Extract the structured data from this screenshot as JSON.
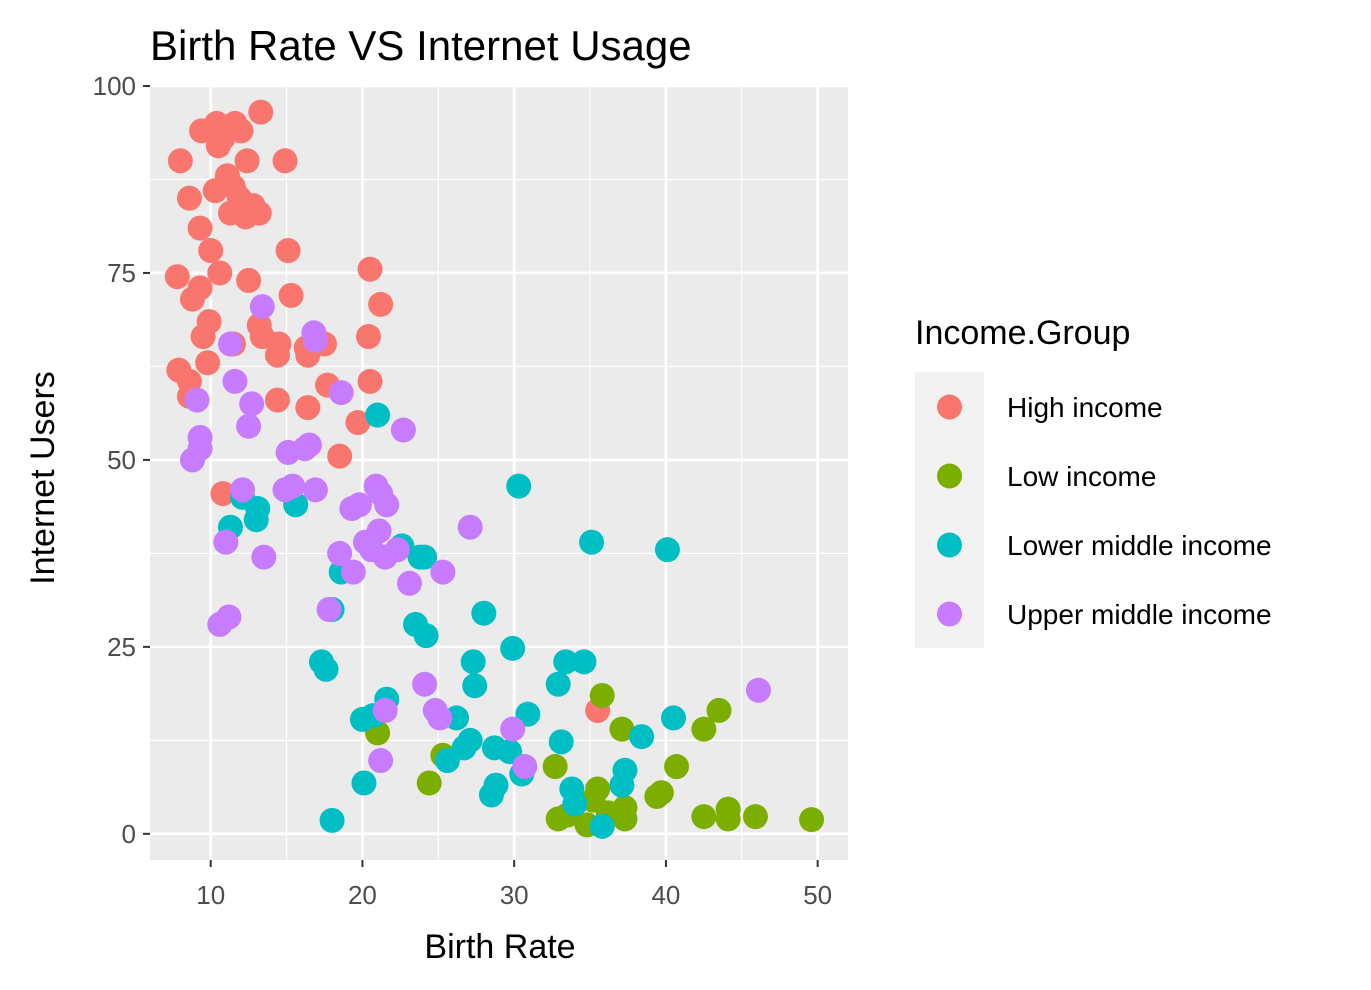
{
  "chart_data": {
    "type": "scatter",
    "title": "Birth Rate VS Internet Usage",
    "xlabel": "Birth Rate",
    "ylabel": "Internet Users",
    "xlim": [
      6,
      52
    ],
    "ylim": [
      -3.5,
      100
    ],
    "x_ticks": [
      10,
      20,
      30,
      40,
      50
    ],
    "y_ticks": [
      0,
      25,
      50,
      75,
      100
    ],
    "grid": true,
    "legend_title": "Income.Group",
    "legend_position": "right",
    "series": [
      {
        "name": "High income",
        "color": "#F8766D",
        "points": [
          [
            13.3,
            96.5
          ],
          [
            10.4,
            95
          ],
          [
            11.6,
            95
          ],
          [
            12,
            94
          ],
          [
            9.4,
            94
          ],
          [
            10.8,
            93
          ],
          [
            8,
            90
          ],
          [
            12.4,
            90
          ],
          [
            14.9,
            90
          ],
          [
            10.5,
            92
          ],
          [
            11.1,
            88
          ],
          [
            10.3,
            86
          ],
          [
            11.5,
            86.5
          ],
          [
            11.9,
            85
          ],
          [
            12.8,
            84
          ],
          [
            8.6,
            85
          ],
          [
            13.2,
            83
          ],
          [
            11.3,
            83
          ],
          [
            12.3,
            82.5
          ],
          [
            9.3,
            81
          ],
          [
            10,
            78
          ],
          [
            15.1,
            78
          ],
          [
            10.6,
            75
          ],
          [
            7.8,
            74.5
          ],
          [
            12.5,
            74
          ],
          [
            9.3,
            73
          ],
          [
            8.8,
            71.5
          ],
          [
            15.3,
            72
          ],
          [
            20.5,
            75.5
          ],
          [
            21.2,
            70.8
          ],
          [
            9.9,
            68.5
          ],
          [
            13.2,
            68
          ],
          [
            9.5,
            66.5
          ],
          [
            11.5,
            65.5
          ],
          [
            13.4,
            66.5
          ],
          [
            14.5,
            65.5
          ],
          [
            14.4,
            64
          ],
          [
            16.4,
            64
          ],
          [
            16.3,
            65
          ],
          [
            17.5,
            65.5
          ],
          [
            20.4,
            66.5
          ],
          [
            7.9,
            62
          ],
          [
            9.8,
            63
          ],
          [
            8.6,
            60.5
          ],
          [
            8.6,
            58.5
          ],
          [
            14.4,
            58
          ],
          [
            16.4,
            57
          ],
          [
            17.7,
            60
          ],
          [
            20.5,
            60.5
          ],
          [
            19.7,
            55
          ],
          [
            18.5,
            50.5
          ],
          [
            10.8,
            45.5
          ],
          [
            35.5,
            16.5
          ]
        ]
      },
      {
        "name": "Low income",
        "color": "#7CAE00",
        "points": [
          [
            35.8,
            18.5
          ],
          [
            43.5,
            16.5
          ],
          [
            42.5,
            14
          ],
          [
            37.1,
            14
          ],
          [
            40.7,
            9
          ],
          [
            39.7,
            5.5
          ],
          [
            39.4,
            5
          ],
          [
            42.5,
            2.3
          ],
          [
            44.1,
            3.3
          ],
          [
            44.1,
            2
          ],
          [
            45.9,
            2.3
          ],
          [
            49.6,
            1.9
          ],
          [
            37.3,
            3.5
          ],
          [
            37.3,
            2
          ],
          [
            36.2,
            2.8
          ],
          [
            35.2,
            4.5
          ],
          [
            34.8,
            1.2
          ],
          [
            33.5,
            2.5
          ],
          [
            32.9,
            2
          ],
          [
            32.7,
            9
          ],
          [
            35.5,
            6
          ],
          [
            25.3,
            10.5
          ],
          [
            24.4,
            6.8
          ],
          [
            21,
            13.5
          ]
        ]
      },
      {
        "name": "Lower middle income",
        "color": "#00BFC4",
        "points": [
          [
            21,
            56
          ],
          [
            30.3,
            46.5
          ],
          [
            35.1,
            39
          ],
          [
            40.1,
            38
          ],
          [
            11.3,
            41
          ],
          [
            12.1,
            45
          ],
          [
            13.1,
            43.5
          ],
          [
            13,
            42
          ],
          [
            15.6,
            44
          ],
          [
            22.6,
            38.5
          ],
          [
            23.8,
            37
          ],
          [
            24.1,
            37
          ],
          [
            18.6,
            35
          ],
          [
            18,
            30
          ],
          [
            28,
            29.5
          ],
          [
            23.5,
            28
          ],
          [
            24.2,
            26.5
          ],
          [
            29.9,
            24.8
          ],
          [
            27.3,
            23
          ],
          [
            33.4,
            23
          ],
          [
            34.6,
            23
          ],
          [
            27.4,
            19.8
          ],
          [
            17.3,
            23
          ],
          [
            17.6,
            22
          ],
          [
            21.6,
            18
          ],
          [
            32.9,
            20
          ],
          [
            26.2,
            15.5
          ],
          [
            30.9,
            16
          ],
          [
            40.5,
            15.5
          ],
          [
            38.4,
            13
          ],
          [
            20,
            15.3
          ],
          [
            20.7,
            15.8
          ],
          [
            27.1,
            12.5
          ],
          [
            26.7,
            11.5
          ],
          [
            33.1,
            12.3
          ],
          [
            25.6,
            9.8
          ],
          [
            28.7,
            11.5
          ],
          [
            29.7,
            11
          ],
          [
            28.8,
            6.5
          ],
          [
            30.5,
            8
          ],
          [
            37.3,
            8.5
          ],
          [
            20.1,
            6.8
          ],
          [
            28.5,
            5.2
          ],
          [
            33.8,
            6
          ],
          [
            37.1,
            6.5
          ],
          [
            34,
            4
          ],
          [
            35.8,
            1
          ],
          [
            18,
            1.8
          ]
        ]
      },
      {
        "name": "Upper middle income",
        "color": "#C77CFF",
        "points": [
          [
            13.4,
            70.5
          ],
          [
            16.8,
            67
          ],
          [
            11.3,
            65.5
          ],
          [
            16.9,
            66
          ],
          [
            11.6,
            60.5
          ],
          [
            9.1,
            58
          ],
          [
            18.6,
            59
          ],
          [
            12.7,
            57.5
          ],
          [
            12.5,
            54.5
          ],
          [
            22.7,
            54
          ],
          [
            9.3,
            53
          ],
          [
            9.3,
            51.5
          ],
          [
            8.8,
            50
          ],
          [
            15.1,
            51
          ],
          [
            16.2,
            51.5
          ],
          [
            16.5,
            52
          ],
          [
            12.1,
            46
          ],
          [
            14.9,
            46
          ],
          [
            15.4,
            46.5
          ],
          [
            16.9,
            46
          ],
          [
            19.3,
            43.5
          ],
          [
            19.8,
            44
          ],
          [
            20.9,
            46.5
          ],
          [
            21.2,
            45.5
          ],
          [
            21.6,
            44
          ],
          [
            27.1,
            41
          ],
          [
            20.2,
            39
          ],
          [
            21.1,
            40.5
          ],
          [
            20.6,
            38
          ],
          [
            21.5,
            37
          ],
          [
            22.3,
            38
          ],
          [
            18.5,
            37.5
          ],
          [
            19.4,
            35
          ],
          [
            25.3,
            35
          ],
          [
            23.1,
            33.5
          ],
          [
            11,
            39
          ],
          [
            13.5,
            37
          ],
          [
            17.8,
            30
          ],
          [
            11.2,
            29
          ],
          [
            10.6,
            28
          ],
          [
            24.1,
            20
          ],
          [
            24.8,
            16.5
          ],
          [
            25.1,
            15.5
          ],
          [
            21.5,
            16.5
          ],
          [
            29.9,
            14
          ],
          [
            30.7,
            9
          ],
          [
            21.2,
            9.8
          ],
          [
            46.1,
            19.2
          ]
        ]
      }
    ]
  }
}
